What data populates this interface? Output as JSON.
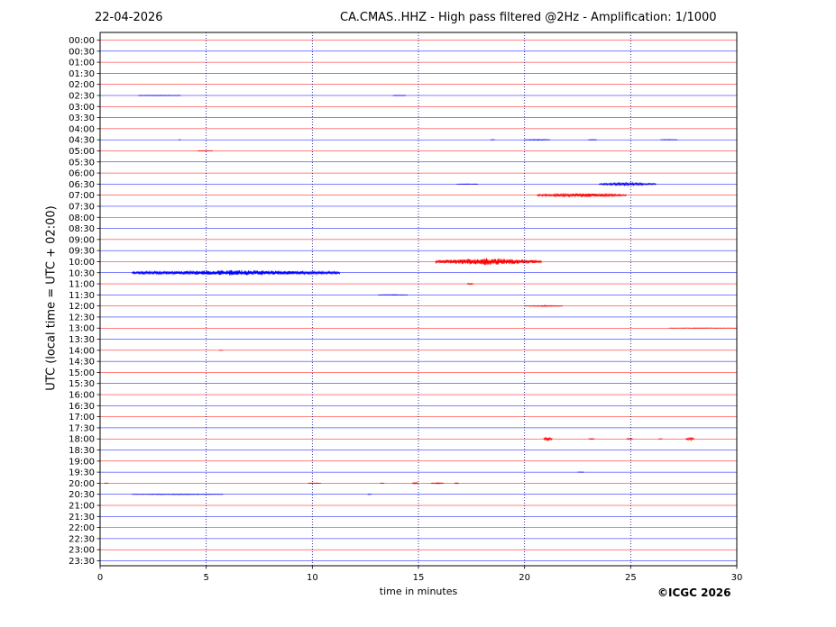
{
  "header": {
    "date": "22-04-2026",
    "title": "CA.CMAS..HHZ - High pass filtered @2Hz - Amplification: 1/1000"
  },
  "footer": {
    "copyright": "©ICGC 2026"
  },
  "colors": {
    "red_trace": "#ff0000",
    "blue_trace": "#0000ff",
    "grid": "#000080",
    "frame": "#000000"
  },
  "chart_data": {
    "type": "line",
    "title": "CA.CMAS..HHZ - High pass filtered @2Hz - Amplification: 1/1000",
    "xlabel": "time in minutes",
    "ylabel": "UTC (local time = UTC + 02:00)",
    "xlim": [
      0,
      30
    ],
    "x_ticks": [
      0,
      5,
      10,
      15,
      20,
      25,
      30
    ],
    "grid": "vertical dotted lines every 5 minutes",
    "series_colors": "alternating red / blue per 30-minute row (red at :00, blue at :30)",
    "rows": [
      "00:00",
      "00:30",
      "01:00",
      "01:30",
      "02:00",
      "02:30",
      "03:00",
      "03:30",
      "04:00",
      "04:30",
      "05:00",
      "05:30",
      "06:00",
      "06:30",
      "07:00",
      "07:30",
      "08:00",
      "08:30",
      "09:00",
      "09:30",
      "10:00",
      "10:30",
      "11:00",
      "11:30",
      "12:00",
      "12:30",
      "13:00",
      "13:30",
      "14:00",
      "14:30",
      "15:00",
      "15:30",
      "16:00",
      "16:30",
      "17:00",
      "17:30",
      "18:00",
      "18:30",
      "19:00",
      "19:30",
      "20:00",
      "20:30",
      "21:00",
      "21:30",
      "22:00",
      "22:30",
      "23:00",
      "23:30"
    ],
    "events": [
      {
        "row": "02:30",
        "start": 1.8,
        "end": 3.8,
        "amp": 0.25
      },
      {
        "row": "02:30",
        "start": 13.8,
        "end": 14.4,
        "amp": 0.25
      },
      {
        "row": "04:30",
        "start": 3.7,
        "end": 3.8,
        "amp": 0.3
      },
      {
        "row": "04:30",
        "start": 18.4,
        "end": 18.6,
        "amp": 0.3
      },
      {
        "row": "04:30",
        "start": 20.0,
        "end": 21.2,
        "amp": 0.5
      },
      {
        "row": "04:30",
        "start": 23.0,
        "end": 23.4,
        "amp": 0.4
      },
      {
        "row": "04:30",
        "start": 26.4,
        "end": 27.2,
        "amp": 0.35
      },
      {
        "row": "05:00",
        "start": 4.6,
        "end": 5.3,
        "amp": 0.3
      },
      {
        "row": "06:30",
        "start": 16.8,
        "end": 17.8,
        "amp": 0.35
      },
      {
        "row": "06:30",
        "start": 23.5,
        "end": 26.2,
        "amp": 1.6
      },
      {
        "row": "07:00",
        "start": 20.6,
        "end": 24.8,
        "amp": 2.2
      },
      {
        "row": "10:00",
        "start": 15.8,
        "end": 20.8,
        "amp": 4.0
      },
      {
        "row": "10:30",
        "start": 1.5,
        "end": 11.3,
        "amp": 3.0
      },
      {
        "row": "11:00",
        "start": 17.3,
        "end": 17.6,
        "amp": 1.0
      },
      {
        "row": "11:30",
        "start": 13.1,
        "end": 14.5,
        "amp": 0.35
      },
      {
        "row": "12:00",
        "start": 20.0,
        "end": 21.8,
        "amp": 0.6
      },
      {
        "row": "13:00",
        "start": 26.8,
        "end": 30.0,
        "amp": 0.3
      },
      {
        "row": "14:00",
        "start": 5.6,
        "end": 5.8,
        "amp": 0.3
      },
      {
        "row": "18:00",
        "start": 20.9,
        "end": 21.3,
        "amp": 2.3
      },
      {
        "row": "18:00",
        "start": 23.0,
        "end": 23.3,
        "amp": 0.7
      },
      {
        "row": "18:00",
        "start": 24.8,
        "end": 25.1,
        "amp": 0.8
      },
      {
        "row": "18:00",
        "start": 26.3,
        "end": 26.5,
        "amp": 0.6
      },
      {
        "row": "18:00",
        "start": 27.6,
        "end": 28.0,
        "amp": 1.5
      },
      {
        "row": "19:30",
        "start": 22.5,
        "end": 22.8,
        "amp": 0.3
      },
      {
        "row": "20:00",
        "start": 0.2,
        "end": 0.4,
        "amp": 0.4
      },
      {
        "row": "20:00",
        "start": 9.8,
        "end": 10.4,
        "amp": 0.5
      },
      {
        "row": "20:00",
        "start": 13.2,
        "end": 13.4,
        "amp": 0.4
      },
      {
        "row": "20:00",
        "start": 14.7,
        "end": 15.0,
        "amp": 1.0
      },
      {
        "row": "20:00",
        "start": 15.6,
        "end": 16.2,
        "amp": 0.6
      },
      {
        "row": "20:00",
        "start": 16.7,
        "end": 16.9,
        "amp": 0.8
      },
      {
        "row": "20:30",
        "start": 1.5,
        "end": 5.8,
        "amp": 0.4
      },
      {
        "row": "20:30",
        "start": 12.6,
        "end": 12.8,
        "amp": 0.3
      }
    ]
  }
}
